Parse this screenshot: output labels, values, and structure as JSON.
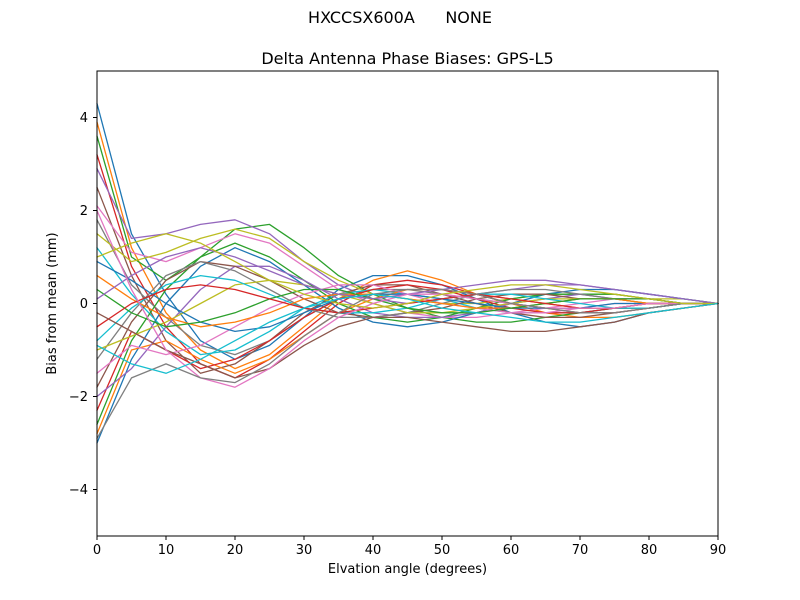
{
  "figure": {
    "suptitle": "HXCCSX600A      NONE",
    "axes_title": "Delta Antenna Phase Biases: GPS-L5"
  },
  "chart_data": {
    "type": "line",
    "title": "Delta Antenna Phase Biases: GPS-L5",
    "suptitle": "HXCCSX600A      NONE",
    "xlabel": "Elvation angle (degrees)",
    "ylabel": "Bias from mean (mm)",
    "xlim": [
      0,
      90
    ],
    "ylim": [
      -5,
      5
    ],
    "xticks": [
      0,
      10,
      20,
      30,
      40,
      50,
      60,
      70,
      80,
      90
    ],
    "yticks": [
      -4,
      -2,
      0,
      2,
      4
    ],
    "grid": false,
    "legend": "none",
    "x": [
      0,
      5,
      10,
      15,
      20,
      25,
      30,
      35,
      40,
      45,
      50,
      55,
      60,
      65,
      70,
      75,
      80,
      85,
      90
    ],
    "series": [
      {
        "color": "#1f77b4",
        "values": [
          4.3,
          1.5,
          0.2,
          -0.8,
          -1.2,
          -0.9,
          -0.3,
          0.3,
          0.6,
          0.6,
          0.4,
          0.1,
          -0.2,
          -0.4,
          -0.5,
          -0.4,
          -0.2,
          -0.1,
          0
        ]
      },
      {
        "color": "#ff7f0e",
        "values": [
          3.9,
          1.2,
          -0.2,
          -1.0,
          -1.4,
          -1.1,
          -0.5,
          0.1,
          0.5,
          0.7,
          0.5,
          0.2,
          0.0,
          -0.2,
          -0.3,
          -0.3,
          -0.2,
          -0.1,
          0
        ]
      },
      {
        "color": "#2ca02c",
        "values": [
          3.6,
          1.0,
          0.5,
          1.0,
          1.6,
          1.7,
          1.2,
          0.6,
          0.2,
          -0.1,
          -0.3,
          -0.4,
          -0.4,
          -0.3,
          -0.2,
          -0.1,
          -0.1,
          0.0,
          0
        ]
      },
      {
        "color": "#d62728",
        "values": [
          3.2,
          0.8,
          -0.5,
          -1.3,
          -1.6,
          -1.2,
          -0.6,
          0.0,
          0.4,
          0.5,
          0.4,
          0.2,
          0.0,
          -0.1,
          -0.2,
          -0.2,
          -0.1,
          0.0,
          0
        ]
      },
      {
        "color": "#9467bd",
        "values": [
          2.9,
          1.4,
          1.5,
          1.7,
          1.8,
          1.5,
          0.9,
          0.4,
          0.1,
          0.0,
          0.1,
          0.2,
          0.3,
          0.4,
          0.4,
          0.3,
          0.2,
          0.1,
          0
        ]
      },
      {
        "color": "#8c564b",
        "values": [
          2.5,
          0.6,
          -0.8,
          -1.5,
          -1.3,
          -0.8,
          -0.2,
          0.2,
          0.4,
          0.4,
          0.2,
          0.0,
          -0.2,
          -0.3,
          -0.3,
          -0.2,
          -0.1,
          0.0,
          0
        ]
      },
      {
        "color": "#e377c2",
        "values": [
          2.1,
          1.1,
          0.9,
          1.2,
          1.5,
          1.3,
          0.8,
          0.3,
          0.0,
          -0.2,
          -0.3,
          -0.3,
          -0.2,
          -0.1,
          0.0,
          0.1,
          0.1,
          0.0,
          0
        ]
      },
      {
        "color": "#7f7f7f",
        "values": [
          1.8,
          0.4,
          -0.3,
          -0.9,
          -1.1,
          -0.8,
          -0.3,
          0.1,
          0.3,
          0.3,
          0.2,
          0.1,
          0.0,
          -0.1,
          -0.1,
          -0.1,
          0.0,
          0.0,
          0
        ]
      },
      {
        "color": "#bcbd22",
        "values": [
          1.5,
          0.9,
          1.1,
          1.4,
          1.6,
          1.4,
          0.9,
          0.5,
          0.2,
          0.1,
          0.0,
          0.0,
          0.1,
          0.2,
          0.2,
          0.2,
          0.1,
          0.1,
          0
        ]
      },
      {
        "color": "#17becf",
        "values": [
          1.2,
          0.2,
          -0.6,
          -1.1,
          -1.0,
          -0.6,
          -0.1,
          0.2,
          0.3,
          0.2,
          0.1,
          -0.1,
          -0.2,
          -0.2,
          -0.2,
          -0.1,
          -0.1,
          0.0,
          0
        ]
      },
      {
        "color": "#1f77b4",
        "values": [
          -3.0,
          -1.2,
          0.0,
          0.8,
          1.2,
          0.9,
          0.4,
          -0.1,
          -0.4,
          -0.5,
          -0.4,
          -0.2,
          0.0,
          0.2,
          0.3,
          0.3,
          0.2,
          0.1,
          0
        ]
      },
      {
        "color": "#ff7f0e",
        "values": [
          -2.8,
          -1.0,
          -0.8,
          -1.2,
          -1.5,
          -1.2,
          -0.7,
          -0.2,
          0.1,
          0.3,
          0.3,
          0.2,
          0.1,
          0.0,
          -0.1,
          -0.1,
          0.0,
          0.0,
          0
        ]
      },
      {
        "color": "#2ca02c",
        "values": [
          -2.6,
          -0.8,
          0.3,
          1.0,
          1.3,
          1.0,
          0.5,
          0.0,
          -0.3,
          -0.4,
          -0.3,
          -0.1,
          0.1,
          0.2,
          0.2,
          0.2,
          0.1,
          0.0,
          0
        ]
      },
      {
        "color": "#d62728",
        "values": [
          -2.3,
          -0.6,
          -1.0,
          -1.4,
          -1.2,
          -0.8,
          -0.3,
          0.1,
          0.3,
          0.4,
          0.3,
          0.1,
          -0.1,
          -0.2,
          -0.2,
          -0.1,
          -0.1,
          0.0,
          0
        ]
      },
      {
        "color": "#9467bd",
        "values": [
          -2.0,
          -1.4,
          -0.5,
          0.3,
          0.8,
          0.8,
          0.5,
          0.1,
          -0.2,
          -0.3,
          -0.3,
          -0.2,
          0.0,
          0.1,
          0.2,
          0.1,
          0.1,
          0.0,
          0
        ]
      },
      {
        "color": "#8c564b",
        "values": [
          -1.8,
          -0.4,
          0.5,
          0.9,
          0.8,
          0.5,
          0.1,
          -0.2,
          -0.3,
          -0.2,
          -0.1,
          0.1,
          0.2,
          0.2,
          0.1,
          0.1,
          0.0,
          0.0,
          0
        ]
      },
      {
        "color": "#e377c2",
        "values": [
          -1.5,
          -0.9,
          -1.1,
          -0.9,
          -0.5,
          -0.1,
          0.2,
          0.4,
          0.4,
          0.2,
          0.0,
          -0.1,
          -0.2,
          -0.2,
          -0.1,
          0.0,
          0.0,
          0.0,
          0
        ]
      },
      {
        "color": "#7f7f7f",
        "values": [
          -1.2,
          -0.2,
          0.6,
          0.9,
          0.7,
          0.3,
          -0.1,
          -0.3,
          -0.3,
          -0.2,
          0.0,
          0.2,
          0.3,
          0.3,
          0.2,
          0.1,
          0.1,
          0.0,
          0
        ]
      },
      {
        "color": "#bcbd22",
        "values": [
          -1.0,
          -0.7,
          -0.4,
          0.0,
          0.4,
          0.5,
          0.4,
          0.2,
          0.0,
          -0.2,
          -0.2,
          -0.1,
          0.0,
          0.1,
          0.1,
          0.1,
          0.0,
          0.0,
          0
        ]
      },
      {
        "color": "#17becf",
        "values": [
          -0.8,
          -0.1,
          0.4,
          0.6,
          0.5,
          0.2,
          -0.1,
          -0.2,
          -0.2,
          -0.1,
          0.1,
          0.2,
          0.2,
          0.1,
          0.0,
          -0.1,
          -0.1,
          0.0,
          0
        ]
      },
      {
        "color": "#1f77b4",
        "values": [
          0.9,
          0.5,
          0.0,
          -0.4,
          -0.6,
          -0.5,
          -0.2,
          0.1,
          0.2,
          0.2,
          0.1,
          0.0,
          -0.1,
          -0.1,
          -0.1,
          0.0,
          0.0,
          0.0,
          0
        ]
      },
      {
        "color": "#ff7f0e",
        "values": [
          0.6,
          0.1,
          -0.3,
          -0.5,
          -0.4,
          -0.2,
          0.1,
          0.2,
          0.2,
          0.1,
          0.0,
          -0.1,
          -0.1,
          0.0,
          0.1,
          0.1,
          0.0,
          0.0,
          0
        ]
      },
      {
        "color": "#2ca02c",
        "values": [
          0.3,
          -0.2,
          -0.5,
          -0.4,
          -0.2,
          0.1,
          0.3,
          0.3,
          0.1,
          -0.1,
          -0.2,
          -0.2,
          -0.1,
          0.0,
          0.1,
          0.1,
          0.1,
          0.0,
          0
        ]
      },
      {
        "color": "#d62728",
        "values": [
          -0.5,
          0.0,
          0.3,
          0.4,
          0.3,
          0.1,
          -0.1,
          -0.2,
          -0.1,
          0.0,
          0.1,
          0.2,
          0.1,
          0.0,
          -0.1,
          -0.1,
          0.0,
          0.0,
          0
        ]
      },
      {
        "color": "#9467bd",
        "values": [
          0.1,
          0.6,
          1.0,
          1.2,
          1.0,
          0.7,
          0.4,
          0.2,
          0.1,
          0.2,
          0.3,
          0.4,
          0.5,
          0.5,
          0.4,
          0.3,
          0.2,
          0.1,
          0
        ]
      },
      {
        "color": "#8c564b",
        "values": [
          -0.2,
          -0.6,
          -1.0,
          -1.3,
          -1.6,
          -1.4,
          -0.9,
          -0.5,
          -0.3,
          -0.3,
          -0.4,
          -0.5,
          -0.6,
          -0.6,
          -0.5,
          -0.4,
          -0.2,
          -0.1,
          0
        ]
      },
      {
        "color": "#e377c2",
        "values": [
          2.0,
          0.3,
          -1.0,
          -1.6,
          -1.8,
          -1.4,
          -0.8,
          -0.3,
          0.0,
          0.2,
          0.2,
          0.1,
          0.0,
          -0.1,
          -0.1,
          -0.1,
          0.0,
          0.0,
          0
        ]
      },
      {
        "color": "#7f7f7f",
        "values": [
          -2.9,
          -1.6,
          -1.3,
          -1.6,
          -1.7,
          -1.3,
          -0.7,
          -0.2,
          0.2,
          0.3,
          0.3,
          0.2,
          0.0,
          -0.1,
          -0.2,
          -0.2,
          -0.1,
          0.0,
          0
        ]
      },
      {
        "color": "#bcbd22",
        "values": [
          1.0,
          1.3,
          1.5,
          1.3,
          0.9,
          0.5,
          0.2,
          0.0,
          -0.1,
          0.0,
          0.2,
          0.3,
          0.4,
          0.4,
          0.3,
          0.2,
          0.1,
          0.0,
          0
        ]
      },
      {
        "color": "#17becf",
        "values": [
          -0.9,
          -1.3,
          -1.5,
          -1.2,
          -0.8,
          -0.4,
          -0.1,
          0.1,
          0.2,
          0.1,
          -0.1,
          -0.2,
          -0.3,
          -0.4,
          -0.4,
          -0.3,
          -0.2,
          -0.1,
          0
        ]
      }
    ]
  }
}
